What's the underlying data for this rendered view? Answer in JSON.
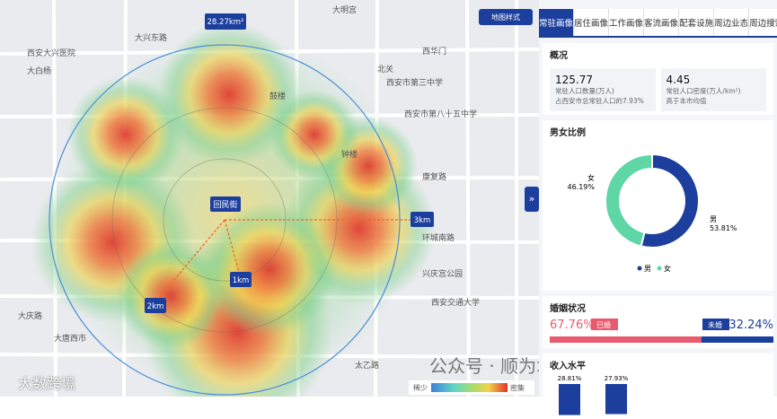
{
  "map": {
    "labels": [
      "大明宫",
      "西安大兴医院",
      "大兴东路",
      "大白杨",
      "北关",
      "西安市第三中学",
      "西华门",
      "鼓楼",
      "钟楼",
      "康复路",
      "西安交通大学",
      "大庆路",
      "大唐西市",
      "太乙路",
      "环城南路",
      "兴庆宫公园",
      "西安市第八十五中学"
    ],
    "area_badge": "28.27km²",
    "center_label": "回民街",
    "rings": [
      "1km",
      "2km",
      "3km"
    ],
    "style_button": "地图样式",
    "expand": "»",
    "legend": {
      "low": "稀少",
      "high": "密集"
    }
  },
  "tabs": [
    "常驻画像",
    "居住画像",
    "工作画像",
    "客流画像",
    "配套设施",
    "周边业态",
    "周边搜索"
  ],
  "overview": {
    "title": "概况",
    "cards": [
      {
        "value": "125.77",
        "label": "常驻人口数量(万人)",
        "note": "占西安市总常驻人口的7.93%"
      },
      {
        "value": "4.45",
        "label": "常驻人口密度(万人/km²)",
        "note": "高于本市均值"
      }
    ]
  },
  "chart_data": {
    "type": "pie",
    "title": "男女比例",
    "categories": [
      "男",
      "女"
    ],
    "values": [
      53.81,
      46.19
    ],
    "value_labels": [
      "53.81%",
      "46.19%"
    ],
    "colors": [
      "#1c3f9e",
      "#5fd6a6"
    ]
  },
  "marriage": {
    "title": "婚姻状况",
    "married": {
      "name": "已婚",
      "value": 67.76,
      "label": "67.76%"
    },
    "unmarried": {
      "name": "未婚",
      "value": 32.24,
      "label": "32.24%"
    }
  },
  "income": {
    "title": "收入水平",
    "bars": [
      {
        "value": 28.81,
        "label": "28.81%"
      },
      {
        "value": 27.93,
        "label": "27.93%"
      }
    ]
  },
  "watermark": "公众号 · 顺为城市地图订阅号",
  "logo": "大数跨境"
}
